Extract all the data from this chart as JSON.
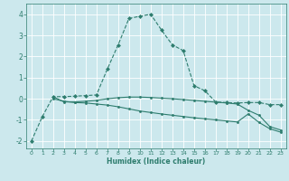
{
  "bg_color": "#cce8ed",
  "grid_color": "#ffffff",
  "line_color": "#2e7d6e",
  "xlabel": "Humidex (Indice chaleur)",
  "xlim": [
    -0.5,
    23.5
  ],
  "ylim": [
    -2.35,
    4.5
  ],
  "xticks": [
    0,
    1,
    2,
    3,
    4,
    5,
    6,
    7,
    8,
    9,
    10,
    11,
    12,
    13,
    14,
    15,
    16,
    17,
    18,
    19,
    20,
    21,
    22,
    23
  ],
  "yticks": [
    -2,
    -1,
    0,
    1,
    2,
    3,
    4
  ],
  "curve1_x": [
    0,
    1,
    2,
    3,
    4,
    5,
    6,
    7,
    8,
    9,
    10,
    11,
    12,
    13,
    14,
    15,
    16,
    17,
    18,
    19,
    20,
    21,
    22,
    23
  ],
  "curve1_y": [
    -2.0,
    -0.85,
    0.1,
    0.1,
    0.12,
    0.15,
    0.18,
    1.4,
    2.55,
    3.8,
    3.9,
    4.0,
    3.25,
    2.55,
    2.28,
    0.62,
    0.38,
    -0.15,
    -0.18,
    -0.2,
    -0.18,
    -0.18,
    -0.28,
    -0.28
  ],
  "curve2_x": [
    2,
    3,
    4,
    5,
    6,
    7,
    8,
    9,
    10,
    11,
    12,
    13,
    14,
    15,
    16,
    17,
    18,
    19,
    20,
    21,
    22,
    23
  ],
  "curve2_y": [
    0.1,
    -0.15,
    -0.15,
    -0.12,
    -0.08,
    0.0,
    0.05,
    0.08,
    0.08,
    0.06,
    0.03,
    0.0,
    -0.04,
    -0.08,
    -0.12,
    -0.16,
    -0.2,
    -0.25,
    -0.55,
    -0.78,
    -1.32,
    -1.48
  ],
  "curve3_x": [
    2,
    3,
    4,
    5,
    6,
    7,
    8,
    9,
    10,
    11,
    12,
    13,
    14,
    15,
    16,
    17,
    18,
    19,
    20,
    21,
    22,
    23
  ],
  "curve3_y": [
    0.0,
    -0.12,
    -0.18,
    -0.2,
    -0.25,
    -0.3,
    -0.38,
    -0.48,
    -0.58,
    -0.65,
    -0.72,
    -0.78,
    -0.84,
    -0.9,
    -0.95,
    -1.0,
    -1.05,
    -1.1,
    -0.72,
    -1.12,
    -1.42,
    -1.58
  ]
}
